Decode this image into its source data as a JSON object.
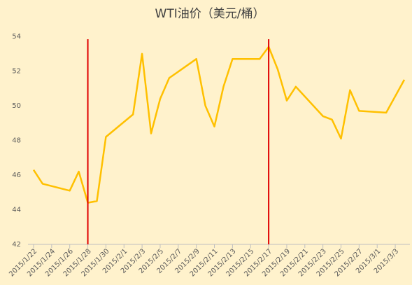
{
  "chart_data": {
    "type": "line",
    "title": "WTI油价（美元/桶）",
    "x": [
      "2015/1/22",
      "2015/1/23",
      "2015/1/26",
      "2015/1/27",
      "2015/1/28",
      "2015/1/29",
      "2015/1/30",
      "2015/2/2",
      "2015/2/3",
      "2015/2/4",
      "2015/2/5",
      "2015/2/6",
      "2015/2/9",
      "2015/2/10",
      "2015/2/11",
      "2015/2/12",
      "2015/2/13",
      "2015/2/16",
      "2015/2/17",
      "2015/2/18",
      "2015/2/19",
      "2015/2/20",
      "2015/2/23",
      "2015/2/24",
      "2015/2/25",
      "2015/2/26",
      "2015/2/27",
      "2015/3/2",
      "2015/3/4"
    ],
    "series": [
      {
        "color": "#ffc000",
        "values": [
          46.3,
          45.5,
          45.1,
          46.2,
          44.4,
          44.5,
          48.2,
          49.5,
          53.0,
          48.4,
          50.4,
          51.6,
          52.7,
          50.0,
          48.8,
          51.1,
          52.7,
          52.7,
          53.4,
          52.1,
          50.3,
          51.1,
          49.4,
          49.2,
          48.1,
          50.9,
          49.7,
          49.6,
          51.5
        ]
      }
    ],
    "vlines": {
      "color": "#e00000",
      "x": [
        "2015/1/28",
        "2015/2/17"
      ]
    },
    "xlim": [
      "2015/1/22",
      "2015/3/4"
    ],
    "xticks": [
      "2015/1/22",
      "2015/1/24",
      "2015/1/26",
      "2015/1/28",
      "2015/1/30",
      "2015/2/1",
      "2015/2/3",
      "2015/2/5",
      "2015/2/7",
      "2015/2/9",
      "2015/2/11",
      "2015/2/13",
      "2015/2/15",
      "2015/2/17",
      "2015/2/19",
      "2015/2/21",
      "2015/2/23",
      "2015/2/25",
      "2015/2/27",
      "2015/3/1",
      "2015/3/3"
    ],
    "ylim": [
      42,
      54
    ],
    "yticks": [
      42,
      44,
      46,
      48,
      50,
      52,
      54
    ]
  }
}
